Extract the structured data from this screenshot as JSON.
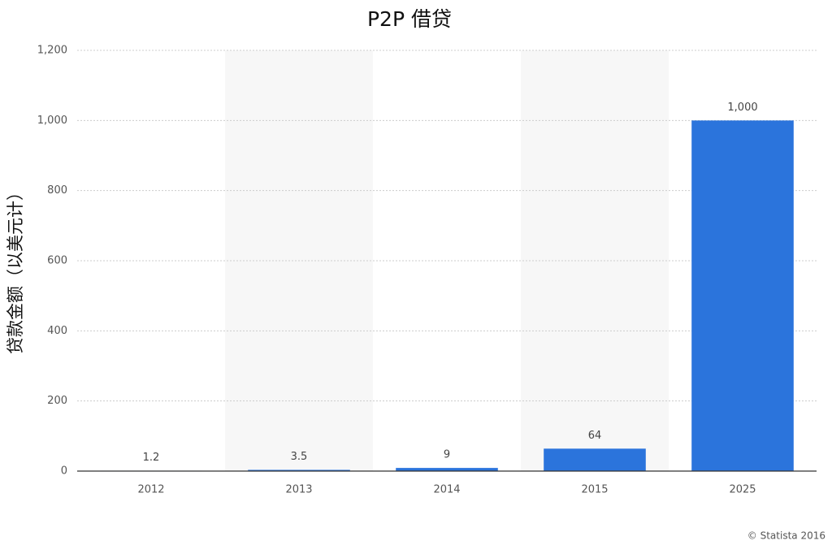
{
  "chart_data": {
    "type": "bar",
    "title": "P2P 借贷",
    "y_label": "贷款金额（以美元计）",
    "source": "© Statista 2016",
    "categories": [
      "2012",
      "2013",
      "2014",
      "2015",
      "2025"
    ],
    "values": [
      1.2,
      3.5,
      9,
      64,
      1000
    ],
    "value_labels": [
      "1.2",
      "3.5",
      "9",
      "64",
      "1,000"
    ],
    "color": "#2b74dc",
    "ylim": [
      0,
      1200
    ],
    "yticks": [
      0,
      200,
      400,
      600,
      800,
      {
        "value": 1000,
        "label": "1,000"
      },
      {
        "value": 1200,
        "label": "1,200"
      }
    ],
    "grid": true
  }
}
